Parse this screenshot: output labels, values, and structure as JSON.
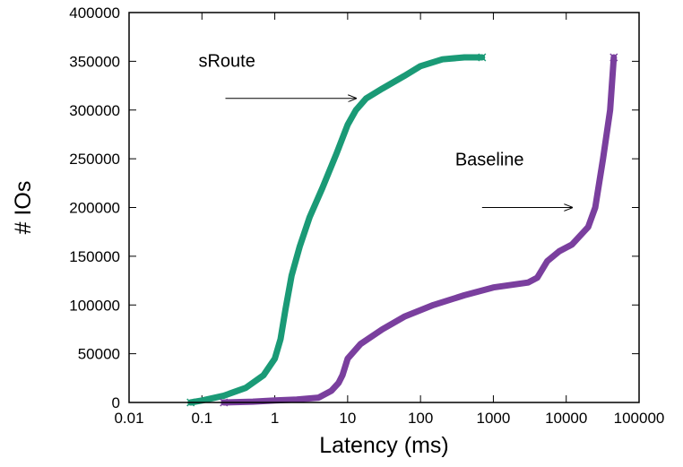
{
  "chart_data": {
    "type": "line",
    "title": "",
    "xlabel": "Latency (ms)",
    "ylabel": "# IOs",
    "x_scale": "log",
    "xlim": [
      0.01,
      100000
    ],
    "ylim": [
      0,
      400000
    ],
    "grid": false,
    "legend": "none",
    "x_ticks": [
      0.01,
      0.1,
      1,
      10,
      100,
      1000,
      10000,
      100000
    ],
    "x_tick_labels": [
      "0.01",
      "0.1",
      "1",
      "10",
      "100",
      "1000",
      "10000",
      "100000"
    ],
    "y_ticks": [
      0,
      50000,
      100000,
      150000,
      200000,
      250000,
      300000,
      350000,
      400000
    ],
    "y_tick_labels": [
      "0",
      "50000",
      "100000",
      "150000",
      "200000",
      "250000",
      "300000",
      "350000",
      "400000"
    ],
    "series": [
      {
        "name": "sRoute",
        "color": "#1a9a76",
        "marker": "x",
        "points": [
          [
            0.07,
            0
          ],
          [
            0.1,
            2000
          ],
          [
            0.2,
            7000
          ],
          [
            0.4,
            15000
          ],
          [
            0.7,
            28000
          ],
          [
            1.0,
            45000
          ],
          [
            1.2,
            65000
          ],
          [
            1.4,
            95000
          ],
          [
            1.7,
            130000
          ],
          [
            2.2,
            160000
          ],
          [
            3.0,
            190000
          ],
          [
            4.5,
            220000
          ],
          [
            7.0,
            255000
          ],
          [
            10,
            285000
          ],
          [
            13,
            300000
          ],
          [
            18,
            312000
          ],
          [
            30,
            322000
          ],
          [
            60,
            335000
          ],
          [
            100,
            345000
          ],
          [
            200,
            352000
          ],
          [
            400,
            354000
          ],
          [
            700,
            354000
          ]
        ]
      },
      {
        "name": "Baseline",
        "color": "#7a3f9e",
        "marker": "x",
        "points": [
          [
            0.2,
            0
          ],
          [
            0.5,
            800
          ],
          [
            1,
            2000
          ],
          [
            2,
            3000
          ],
          [
            4,
            5000
          ],
          [
            6,
            12000
          ],
          [
            7.5,
            20000
          ],
          [
            8.5,
            28000
          ],
          [
            10,
            45000
          ],
          [
            15,
            60000
          ],
          [
            30,
            75000
          ],
          [
            60,
            88000
          ],
          [
            150,
            100000
          ],
          [
            400,
            110000
          ],
          [
            1000,
            118000
          ],
          [
            3000,
            123000
          ],
          [
            4000,
            128000
          ],
          [
            5500,
            145000
          ],
          [
            8000,
            155000
          ],
          [
            12000,
            162000
          ],
          [
            20000,
            180000
          ],
          [
            25000,
            200000
          ],
          [
            32000,
            250000
          ],
          [
            40000,
            300000
          ],
          [
            45000,
            354000
          ]
        ]
      }
    ],
    "annotations": [
      {
        "text": "sRoute",
        "arrow_from": [
          0.21,
          312000
        ],
        "arrow_to": [
          13,
          312000
        ]
      },
      {
        "text": "Baseline",
        "arrow_from": [
          700,
          200000
        ],
        "arrow_to": [
          12000,
          200000
        ]
      }
    ]
  }
}
